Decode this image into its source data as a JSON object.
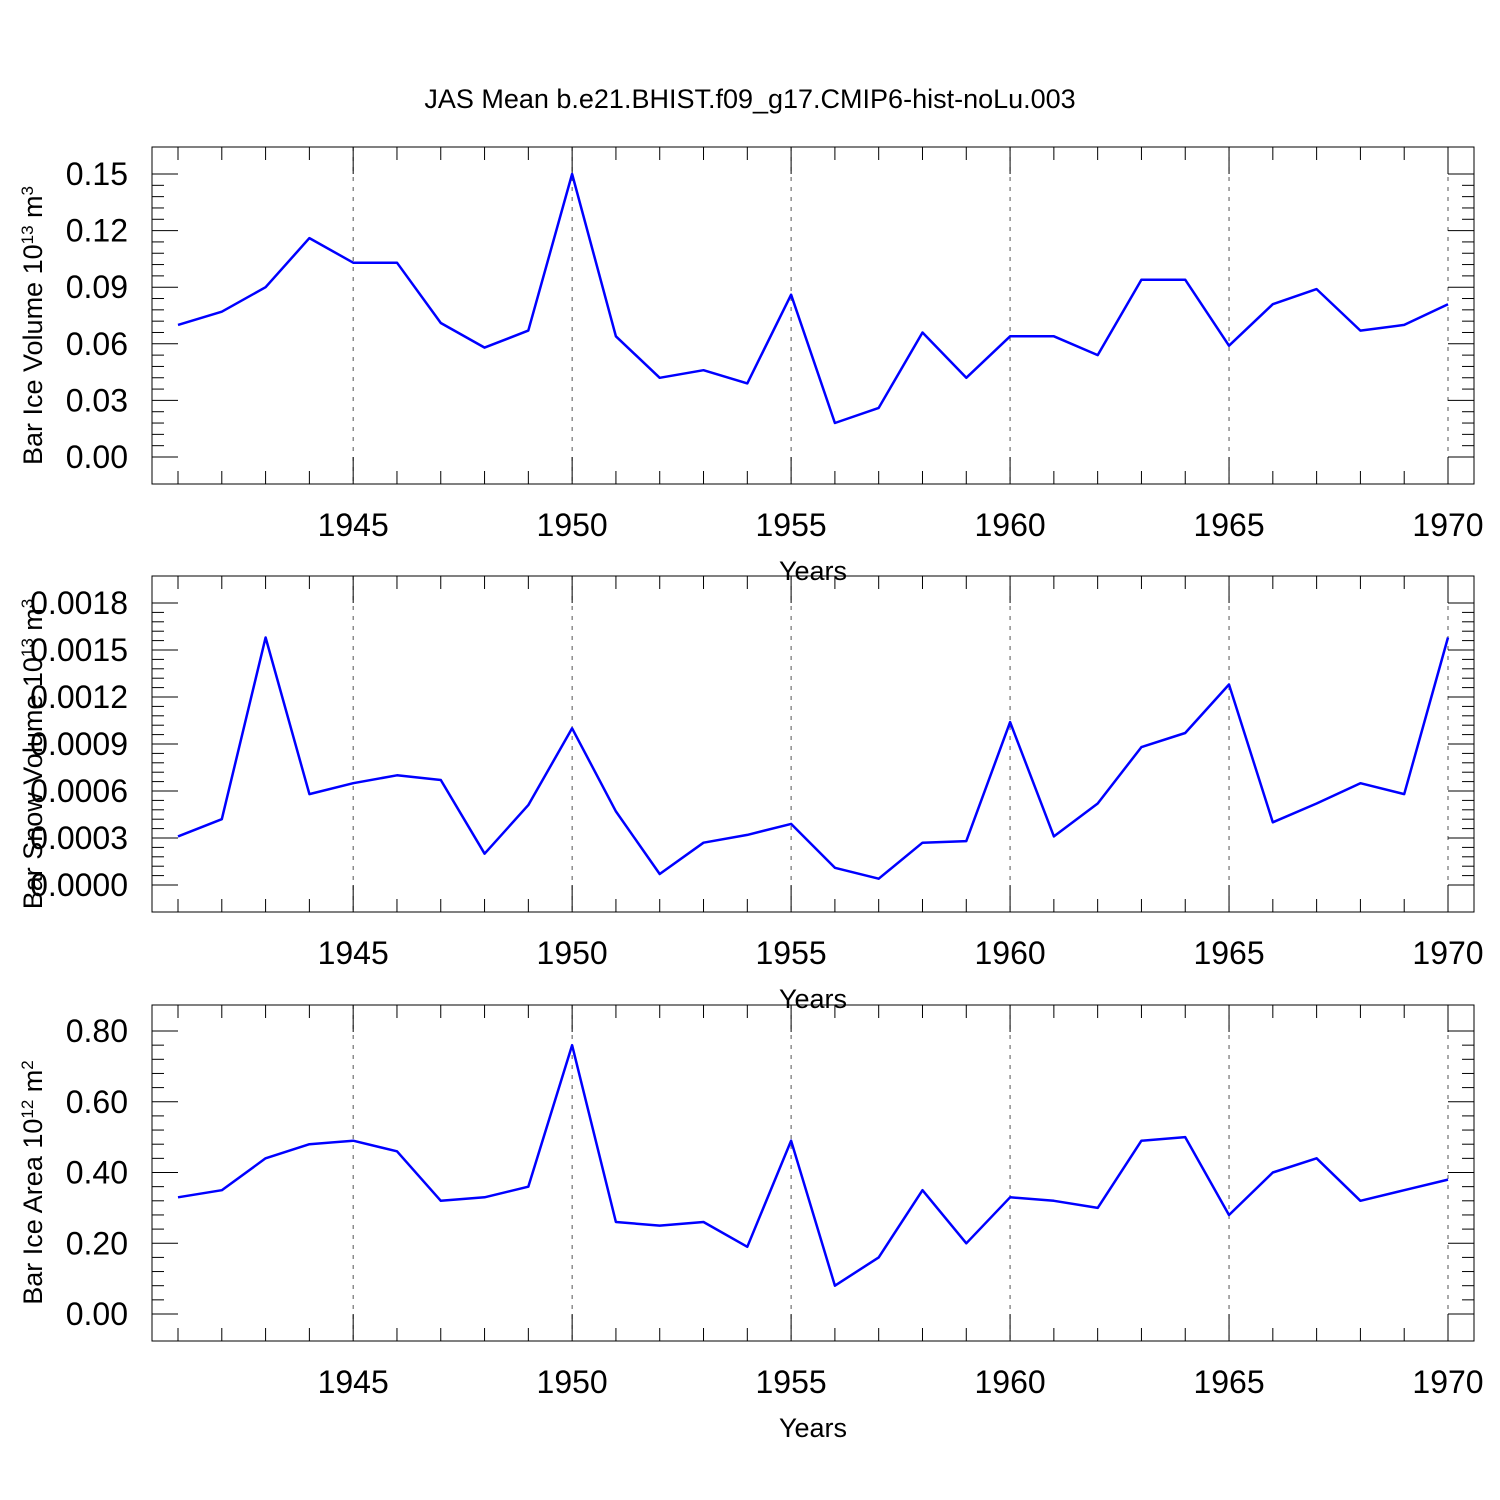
{
  "title": "JAS Mean b.e21.BHIST.f09_g17.CMIP6-hist-noLu.003",
  "colors": {
    "line": "#0000ff",
    "axis": "#000000",
    "grid": "#555555",
    "background": "#ffffff"
  },
  "chart_data": [
    {
      "type": "line",
      "ylabel": {
        "base": "Bar Ice Volume 10",
        "exp": "13",
        "unit": " m",
        "unit_exp": "3"
      },
      "xlabel": "Years",
      "xlim": [
        1941,
        1970
      ],
      "ylim": [
        0,
        0.15
      ],
      "yticks": [
        "0.00",
        "0.03",
        "0.06",
        "0.09",
        "0.12",
        "0.15"
      ],
      "xticks": [
        "1945",
        "1950",
        "1955",
        "1960",
        "1965",
        "1970"
      ],
      "grid": "vertical dashed at major x ticks",
      "series": [
        {
          "x": [
            1941,
            1942,
            1943,
            1944,
            1945,
            1946,
            1947,
            1948,
            1949,
            1950,
            1951,
            1952,
            1953,
            1954,
            1955,
            1956,
            1957,
            1958,
            1959,
            1960,
            1961,
            1962,
            1963,
            1964,
            1965,
            1966,
            1967,
            1968,
            1969,
            1970
          ],
          "values": [
            0.07,
            0.077,
            0.09,
            0.116,
            0.103,
            0.103,
            0.071,
            0.058,
            0.067,
            0.15,
            0.064,
            0.042,
            0.046,
            0.039,
            0.086,
            0.018,
            0.026,
            0.066,
            0.042,
            0.064,
            0.064,
            0.054,
            0.094,
            0.094,
            0.059,
            0.081,
            0.089,
            0.067,
            0.07,
            0.081
          ]
        }
      ]
    },
    {
      "type": "line",
      "ylabel": {
        "base": "Bar Snow Volume 10",
        "exp": "13",
        "unit": " m",
        "unit_exp": "3"
      },
      "xlabel": "Years",
      "xlim": [
        1941,
        1970
      ],
      "ylim": [
        0,
        0.0018
      ],
      "yticks": [
        "0.0000",
        "0.0003",
        "0.0006",
        "0.0009",
        "0.0012",
        "0.0015",
        "0.0018"
      ],
      "xticks": [
        "1945",
        "1950",
        "1955",
        "1960",
        "1965",
        "1970"
      ],
      "grid": "vertical dashed at major x ticks",
      "series": [
        {
          "x": [
            1941,
            1942,
            1943,
            1944,
            1945,
            1946,
            1947,
            1948,
            1949,
            1950,
            1951,
            1952,
            1953,
            1954,
            1955,
            1956,
            1957,
            1958,
            1959,
            1960,
            1961,
            1962,
            1963,
            1964,
            1965,
            1966,
            1967,
            1968,
            1969,
            1970
          ],
          "values": [
            0.00031,
            0.00042,
            0.00158,
            0.00058,
            0.00065,
            0.0007,
            0.00067,
            0.0002,
            0.00051,
            0.001,
            0.00047,
            7e-05,
            0.00027,
            0.00032,
            0.00039,
            0.00011,
            4e-05,
            0.00027,
            0.00028,
            0.00104,
            0.00031,
            0.00052,
            0.00088,
            0.00097,
            0.00128,
            0.0004,
            0.00052,
            0.00065,
            0.00058,
            0.00158
          ]
        }
      ]
    },
    {
      "type": "line",
      "ylabel": {
        "base": "Bar Ice Area 10",
        "exp": "12",
        "unit": " m",
        "unit_exp": "2"
      },
      "xlabel": "Years",
      "xlim": [
        1941,
        1970
      ],
      "ylim": [
        0,
        0.8
      ],
      "yticks": [
        "0.00",
        "0.20",
        "0.40",
        "0.60",
        "0.80"
      ],
      "xticks": [
        "1945",
        "1950",
        "1955",
        "1960",
        "1965",
        "1970"
      ],
      "grid": "vertical dashed at major x ticks",
      "series": [
        {
          "x": [
            1941,
            1942,
            1943,
            1944,
            1945,
            1946,
            1947,
            1948,
            1949,
            1950,
            1951,
            1952,
            1953,
            1954,
            1955,
            1956,
            1957,
            1958,
            1959,
            1960,
            1961,
            1962,
            1963,
            1964,
            1965,
            1966,
            1967,
            1968,
            1969,
            1970
          ],
          "values": [
            0.33,
            0.35,
            0.44,
            0.48,
            0.49,
            0.46,
            0.32,
            0.33,
            0.36,
            0.76,
            0.26,
            0.25,
            0.26,
            0.19,
            0.49,
            0.08,
            0.16,
            0.35,
            0.2,
            0.33,
            0.32,
            0.3,
            0.49,
            0.5,
            0.28,
            0.4,
            0.44,
            0.32,
            0.35,
            0.38
          ]
        }
      ]
    }
  ]
}
